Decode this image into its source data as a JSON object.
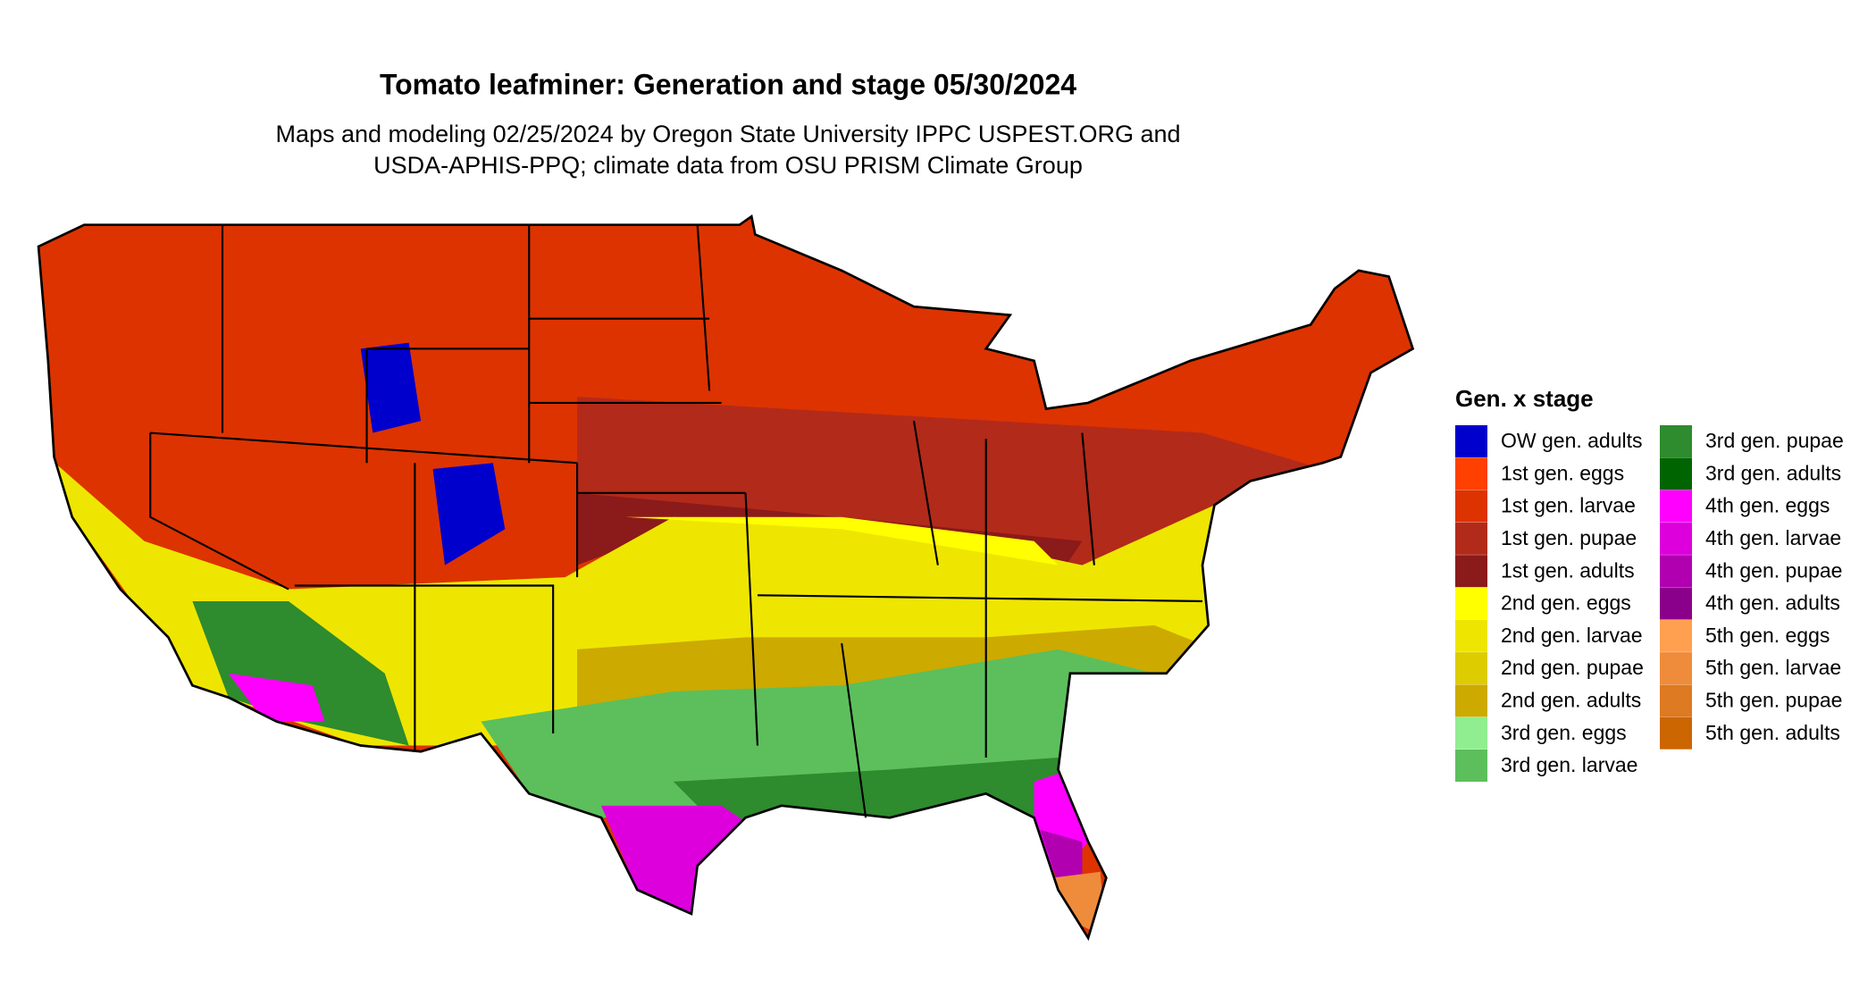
{
  "header": {
    "title": "Tomato leafminer: Generation and stage 05/30/2024",
    "subtitle_lines": [
      "Maps and modeling 02/25/2024 by Oregon State University IPPC USPEST.ORG and",
      "USDA-APHIS-PPQ; climate data from OSU PRISM Climate Group"
    ]
  },
  "legend": {
    "title": "Gen. x stage",
    "items": [
      {
        "name": "OW gen. adults",
        "color": "#0000cc"
      },
      {
        "name": "1st gen. eggs",
        "color": "#ff4000"
      },
      {
        "name": "1st gen. larvae",
        "color": "#dd3300"
      },
      {
        "name": "1st gen. pupae",
        "color": "#b22a1a"
      },
      {
        "name": "1st gen. adults",
        "color": "#8b1a1a"
      },
      {
        "name": "2nd gen. eggs",
        "color": "#ffff00"
      },
      {
        "name": "2nd gen. larvae",
        "color": "#eee600"
      },
      {
        "name": "2nd gen. pupae",
        "color": "#ddcc00"
      },
      {
        "name": "2nd gen. adults",
        "color": "#ccaa00"
      },
      {
        "name": "3rd gen. eggs",
        "color": "#90ee90"
      },
      {
        "name": "3rd gen. larvae",
        "color": "#5cbf5c"
      },
      {
        "name": "3rd gen. pupae",
        "color": "#2e8b2e"
      },
      {
        "name": "3rd gen. adults",
        "color": "#006400"
      },
      {
        "name": "4th gen. eggs",
        "color": "#ff00ff"
      },
      {
        "name": "4th gen. larvae",
        "color": "#dd00dd"
      },
      {
        "name": "4th gen. pupae",
        "color": "#b000b0"
      },
      {
        "name": "4th gen. adults",
        "color": "#8b008b"
      },
      {
        "name": "5th gen. eggs",
        "color": "#ffa050"
      },
      {
        "name": "5th gen. larvae",
        "color": "#ee8c3c"
      },
      {
        "name": "5th gen. pupae",
        "color": "#dd7a22"
      },
      {
        "name": "5th gen. adults",
        "color": "#cc6600"
      }
    ]
  }
}
